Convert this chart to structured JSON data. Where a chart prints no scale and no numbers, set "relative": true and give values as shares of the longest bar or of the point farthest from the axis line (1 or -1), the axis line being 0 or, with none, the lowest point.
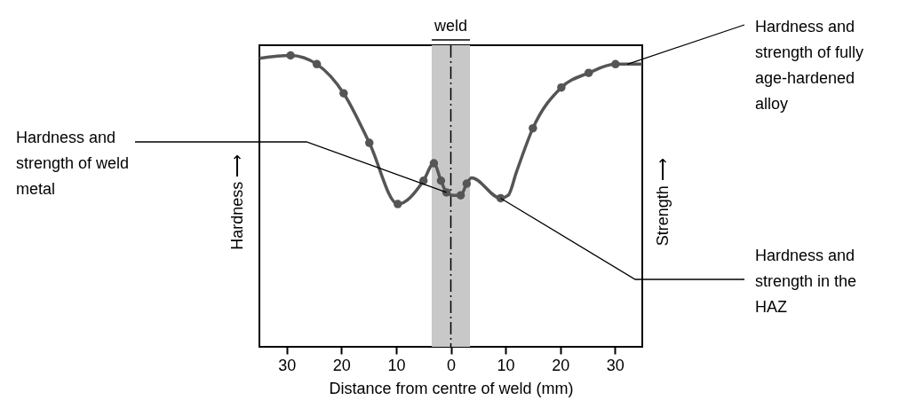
{
  "chart_data": {
    "type": "line",
    "relative": true,
    "xlabel": "Distance from centre of weld (mm)",
    "ylabel": "Hardness ⟶",
    "y2label": "Strength ⟶",
    "xlim": [
      -35,
      35
    ],
    "xticks": [
      {
        "value": -30,
        "label": "30"
      },
      {
        "value": -20,
        "label": "20"
      },
      {
        "value": -10,
        "label": "10"
      },
      0,
      10,
      20,
      30
    ],
    "tick_labels": "x",
    "grid": false,
    "legend": false,
    "series": [
      {
        "color": "#555555",
        "marker": "none",
        "line_style": "solid",
        "x": [
          -35,
          -29.3,
          -24.5,
          -19.6,
          -14.9,
          -9.7,
          -5.0,
          -3.1,
          -1.8,
          -0.8,
          0.5,
          1.8,
          2.9,
          3.8,
          9.1,
          10.5,
          12.0,
          15.0,
          20.2,
          25.2,
          30.1,
          35
        ],
        "values": [
          0.99,
          1.0,
          0.97,
          0.87,
          0.7,
          0.49,
          0.57,
          0.63,
          0.57,
          0.53,
          0.52,
          0.52,
          0.56,
          0.58,
          0.51,
          0.52,
          0.6,
          0.75,
          0.89,
          0.94,
          0.97,
          0.97
        ]
      },
      {
        "type": "scatter",
        "color": "#555555",
        "marker": "circle",
        "x": [
          -29.3,
          -24.5,
          -19.6,
          -14.9,
          -9.7,
          -5.0,
          -3.1,
          -1.8,
          -0.8,
          1.8,
          2.9,
          9.1,
          15.0,
          20.2,
          25.2,
          30.1
        ],
        "values": [
          1.0,
          0.97,
          0.87,
          0.7,
          0.49,
          0.57,
          0.63,
          0.57,
          0.53,
          0.52,
          0.56,
          0.51,
          0.75,
          0.89,
          0.94,
          0.97
        ]
      }
    ],
    "bands": [
      {
        "axis": "x",
        "from": -3.5,
        "to": 3.5,
        "label": "weld",
        "color": "#c8c8c8"
      }
    ],
    "ref_lines": [
      {
        "axis": "x",
        "value": 0,
        "line_style": "dashed",
        "color": "#000000"
      }
    ],
    "annotations": [
      {
        "text": "Hardness and strength of weld metal",
        "x": -0.8,
        "y": 0.53
      },
      {
        "text": "Hardness and strength of fully age-hardened alloy",
        "x": 32.3,
        "y": 0.97
      },
      {
        "text": "Hardness and strength in the HAZ",
        "x": 9.1,
        "y": 0.51
      }
    ]
  }
}
